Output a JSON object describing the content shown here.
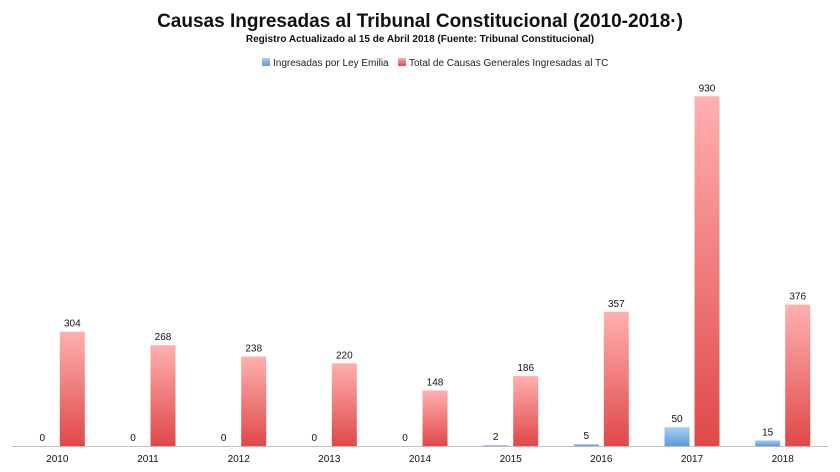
{
  "chart_data": {
    "type": "bar",
    "title": "Causas Ingresadas al Tribunal Constitucional (2010-2018·)",
    "subtitle": "Registro Actualizado al 15 de Abril 2018 (Fuente: Tribunal Constitucional)",
    "xlabel": "",
    "ylabel": "",
    "categories": [
      "2010",
      "2011",
      "2012",
      "2013",
      "2014",
      "2015",
      "2016",
      "2017",
      "2018"
    ],
    "series": [
      {
        "name": "Ingresadas por Ley Emilia",
        "color": "#5b9bd5",
        "values": [
          0,
          0,
          0,
          0,
          0,
          2,
          5,
          50,
          15
        ]
      },
      {
        "name": "Total de Causas Generales Ingresadas al TC",
        "color": "#e05555",
        "values": [
          304,
          268,
          238,
          220,
          148,
          186,
          357,
          930,
          376
        ]
      }
    ],
    "ylim": [
      0,
      1000
    ],
    "grid": false,
    "legend_position": "top-center",
    "data_labels": true
  }
}
